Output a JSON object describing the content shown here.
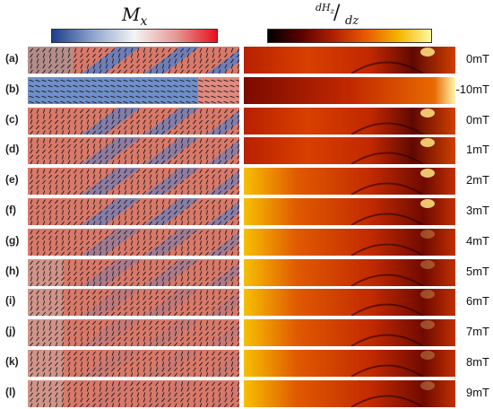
{
  "panels": {
    "left_title": "M",
    "left_title_sub": "x",
    "right_title_top": "dH",
    "right_title_top_sub": "z",
    "right_title_bottom": "dz",
    "left_colormap": [
      "#1c3d8c",
      "#8fa6cf",
      "#f4f4f4",
      "#e59a96",
      "#e8101c"
    ],
    "right_colormap": [
      "#000000",
      "#5a0000",
      "#b02000",
      "#e85a00",
      "#f3b400",
      "#fff8a0"
    ]
  },
  "rows": [
    {
      "label": "(a)",
      "field": "0mT"
    },
    {
      "label": "(b)",
      "field": "-10mT"
    },
    {
      "label": "(c)",
      "field": "0mT"
    },
    {
      "label": "(d)",
      "field": "1mT"
    },
    {
      "label": "(e)",
      "field": "2mT"
    },
    {
      "label": "(f)",
      "field": "3mT"
    },
    {
      "label": "(g)",
      "field": "4mT"
    },
    {
      "label": "(h)",
      "field": "5mT"
    },
    {
      "label": "(i)",
      "field": "6mT"
    },
    {
      "label": "(j)",
      "field": "7mT"
    },
    {
      "label": "(k)",
      "field": "8mT"
    },
    {
      "label": "(l)",
      "field": "9mT"
    }
  ]
}
